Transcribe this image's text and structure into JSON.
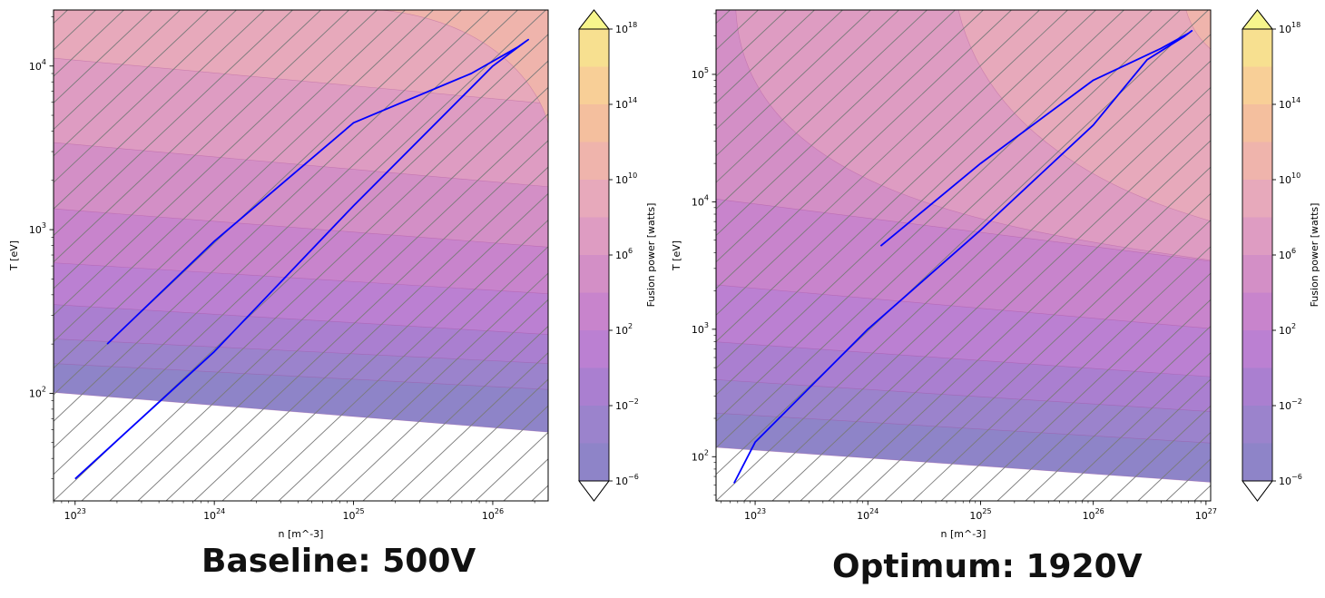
{
  "chart_data": [
    {
      "type": "contour",
      "title": "Baseline: 500V",
      "xlabel": "n [m^-3]",
      "ylabel": "T [eV]",
      "xscale": "log",
      "yscale": "log",
      "xlim": [
        7e+22,
        2.5e+26
      ],
      "ylim": [
        22,
        22000
      ],
      "x_ticks": [
        {
          "value": 1e+23,
          "base": "10",
          "exp": "23"
        },
        {
          "value": 1e+24,
          "base": "10",
          "exp": "24"
        },
        {
          "value": 1e+25,
          "base": "10",
          "exp": "25"
        },
        {
          "value": 1e+26,
          "base": "10",
          "exp": "26"
        }
      ],
      "y_ticks": [
        {
          "value": 100,
          "base": "10",
          "exp": "2"
        },
        {
          "value": 1000,
          "base": "10",
          "exp": "3"
        },
        {
          "value": 10000,
          "base": "10",
          "exp": "4"
        }
      ],
      "hatch": "diagonal lines",
      "trajectory": {
        "color": "#0000ff",
        "points": [
          [
            1.7e+23,
            200
          ],
          [
            1e+24,
            850
          ],
          [
            1e+25,
            4500
          ],
          [
            7e+25,
            9000
          ],
          [
            1.5e+26,
            13000
          ],
          [
            1.8e+26,
            14500
          ],
          [
            1.7e+26,
            14000
          ],
          [
            1e+26,
            10000
          ],
          [
            1e+25,
            1400
          ],
          [
            1e+24,
            180
          ],
          [
            1e+23,
            30
          ]
        ]
      },
      "colorbar": {
        "label": "Fusion power [watts]",
        "levels_log10": [
          -6,
          -4,
          -2,
          0,
          2,
          4,
          6,
          8,
          10,
          12,
          14,
          16,
          18
        ],
        "colors": [
          "#8e84c8",
          "#9b83cc",
          "#aa7fd0",
          "#bb80d2",
          "#c884cc",
          "#d38fc6",
          "#de9cc2",
          "#e7a9bb",
          "#efb4ac",
          "#f4bf9e",
          "#f8cf97",
          "#f7e090",
          "#f6f58c"
        ],
        "ticks": [
          {
            "level": -6,
            "base": "10",
            "exp": "−6"
          },
          {
            "level": -2,
            "base": "10",
            "exp": "−2"
          },
          {
            "level": 2,
            "base": "10",
            "exp": "2"
          },
          {
            "level": 6,
            "base": "10",
            "exp": "6"
          },
          {
            "level": 10,
            "base": "10",
            "exp": "10"
          },
          {
            "level": 14,
            "base": "10",
            "exp": "14"
          },
          {
            "level": 18,
            "base": "10",
            "exp": "18"
          }
        ]
      }
    },
    {
      "type": "contour",
      "title": "Optimum: 1920V",
      "xlabel": "n [m^-3]",
      "ylabel": "T [eV]",
      "xscale": "log",
      "yscale": "log",
      "xlim": [
        4.5e+22,
        1.1e+27
      ],
      "ylim": [
        45,
        320000
      ],
      "x_ticks": [
        {
          "value": 1e+23,
          "base": "10",
          "exp": "23"
        },
        {
          "value": 1e+24,
          "base": "10",
          "exp": "24"
        },
        {
          "value": 1e+25,
          "base": "10",
          "exp": "25"
        },
        {
          "value": 1e+26,
          "base": "10",
          "exp": "26"
        },
        {
          "value": 1e+27,
          "base": "10",
          "exp": "27"
        }
      ],
      "y_ticks": [
        {
          "value": 100,
          "base": "10",
          "exp": "2"
        },
        {
          "value": 1000,
          "base": "10",
          "exp": "3"
        },
        {
          "value": 10000,
          "base": "10",
          "exp": "4"
        },
        {
          "value": 100000,
          "base": "10",
          "exp": "5"
        }
      ],
      "hatch": "diagonal lines",
      "trajectory": {
        "color": "#0000ff",
        "points": [
          [
            1.3e+24,
            4500
          ],
          [
            1e+25,
            20000
          ],
          [
            1e+26,
            90000
          ],
          [
            4e+26,
            160000
          ],
          [
            7e+26,
            210000
          ],
          [
            7.5e+26,
            220000
          ],
          [
            6.5e+26,
            200000
          ],
          [
            3e+26,
            130000
          ],
          [
            1e+26,
            40000
          ],
          [
            1e+25,
            6000
          ],
          [
            1e+24,
            1000
          ],
          [
            1e+23,
            130
          ],
          [
            6.5e+22,
            62
          ]
        ]
      },
      "colorbar": {
        "label": "Fusion power [watts]",
        "levels_log10": [
          -6,
          -4,
          -2,
          0,
          2,
          4,
          6,
          8,
          10,
          12,
          14,
          16,
          18
        ],
        "colors": [
          "#8e84c8",
          "#9b83cc",
          "#aa7fd0",
          "#bb80d2",
          "#c884cc",
          "#d38fc6",
          "#de9cc2",
          "#e7a9bb",
          "#efb4ac",
          "#f4bf9e",
          "#f8cf97",
          "#f7e090",
          "#f6f58c"
        ],
        "ticks": [
          {
            "level": -6,
            "base": "10",
            "exp": "−6"
          },
          {
            "level": -2,
            "base": "10",
            "exp": "−2"
          },
          {
            "level": 2,
            "base": "10",
            "exp": "2"
          },
          {
            "level": 6,
            "base": "10",
            "exp": "6"
          },
          {
            "level": 10,
            "base": "10",
            "exp": "10"
          },
          {
            "level": 14,
            "base": "10",
            "exp": "14"
          },
          {
            "level": 18,
            "base": "10",
            "exp": "18"
          }
        ]
      }
    }
  ]
}
